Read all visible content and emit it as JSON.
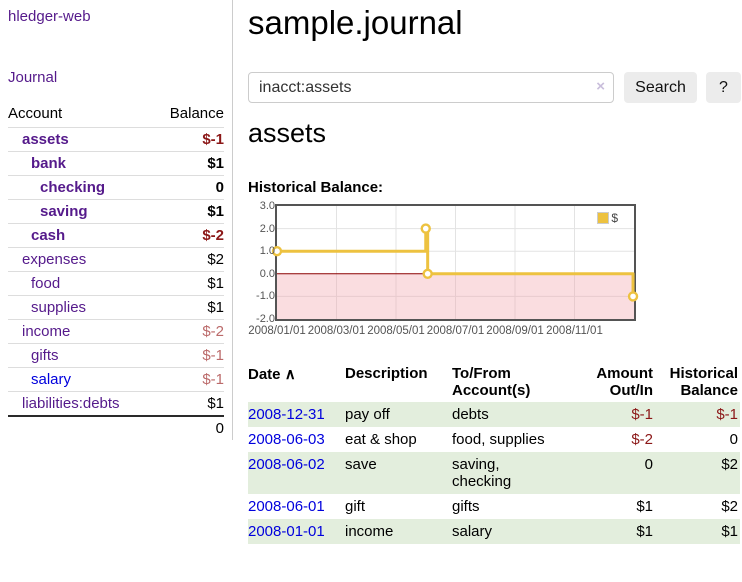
{
  "brand": "hledger-web",
  "nav": {
    "journal_label": "Journal"
  },
  "sidebar": {
    "header": {
      "account": "Account",
      "balance": "Balance"
    },
    "accounts": [
      {
        "name": "assets",
        "indent": 0,
        "bold": true,
        "balance": "$-1",
        "balance_style": "neg"
      },
      {
        "name": "bank",
        "indent": 1,
        "bold": true,
        "balance": "$1",
        "balance_style": "pos"
      },
      {
        "name": "checking",
        "indent": 2,
        "bold": true,
        "balance": "0",
        "balance_style": "pos"
      },
      {
        "name": "saving",
        "indent": 2,
        "bold": true,
        "balance": "$1",
        "balance_style": "pos"
      },
      {
        "name": "cash",
        "indent": 1,
        "bold": true,
        "balance": "$-2",
        "balance_style": "neg"
      },
      {
        "name": "expenses",
        "indent": 0,
        "bold": false,
        "balance": "$2",
        "balance_style": "pos"
      },
      {
        "name": "food",
        "indent": 1,
        "bold": false,
        "balance": "$1",
        "balance_style": "pos"
      },
      {
        "name": "supplies",
        "indent": 1,
        "bold": false,
        "balance": "$1",
        "balance_style": "pos"
      },
      {
        "name": "income",
        "indent": 0,
        "bold": false,
        "balance": "$-2",
        "balance_style": "neg-soft"
      },
      {
        "name": "gifts",
        "indent": 1,
        "bold": false,
        "balance": "$-1",
        "balance_style": "neg-soft"
      },
      {
        "name": "salary",
        "indent": 1,
        "bold": false,
        "balance": "$-1",
        "balance_style": "neg-soft",
        "link_color": "blue"
      },
      {
        "name": "liabilities:debts",
        "indent": 0,
        "bold": false,
        "balance": "$1",
        "balance_style": "pos"
      }
    ],
    "total": "0"
  },
  "header": {
    "title": "sample.journal"
  },
  "search": {
    "value": "inacct:assets",
    "clear_icon": "×",
    "button_label": "Search",
    "help_label": "?"
  },
  "account_page": {
    "title": "assets",
    "chart_label": "Historical Balance:"
  },
  "chart_data": {
    "type": "line",
    "title": "Historical Balance",
    "step": true,
    "series": [
      {
        "name": "$",
        "color": "#edc240",
        "points": [
          {
            "x": "2008-01-01",
            "y": 1
          },
          {
            "x": "2008-06-01",
            "y": 2
          },
          {
            "x": "2008-06-03",
            "y": 0
          },
          {
            "x": "2008-12-31",
            "y": -1
          }
        ]
      }
    ],
    "x_ticks": [
      {
        "label": "2008/01/01",
        "month": 0
      },
      {
        "label": "2008/03/01",
        "month": 2
      },
      {
        "label": "2008/05/01",
        "month": 4
      },
      {
        "label": "2008/07/01",
        "month": 6
      },
      {
        "label": "2008/09/01",
        "month": 8
      },
      {
        "label": "2008/11/01",
        "month": 10
      }
    ],
    "y_ticks": [
      3.0,
      2.0,
      1.0,
      0.0,
      -1.0,
      -2.0
    ],
    "ylim": [
      -2,
      3
    ],
    "xlim_months": [
      0,
      12
    ],
    "grid": true,
    "legend": {
      "label": "$",
      "position": "top-right"
    },
    "colors": {
      "grid": "#e3e3e3",
      "border": "#545454",
      "zero_line": "#8b0000",
      "negative_region": "rgba(240,157,166,0.35)"
    }
  },
  "register": {
    "headers": {
      "date": "Date",
      "sort_icon": "∧",
      "description": "Description",
      "accounts": "To/From Account(s)",
      "amount": "Amount Out/In",
      "balance": "Historical Balance"
    },
    "rows": [
      {
        "date": "2008-12-31",
        "description": "pay off",
        "accounts": "debts",
        "amount": "$-1",
        "amount_neg": true,
        "balance": "$-1",
        "balance_neg": true,
        "stripe": true
      },
      {
        "date": "2008-06-03",
        "description": "eat & shop",
        "accounts": "food, supplies",
        "amount": "$-2",
        "amount_neg": true,
        "balance": "0",
        "balance_neg": false,
        "stripe": false
      },
      {
        "date": "2008-06-02",
        "description": "save",
        "accounts": "saving,\nchecking",
        "amount": "0",
        "amount_neg": false,
        "balance": "$2",
        "balance_neg": false,
        "stripe": true
      },
      {
        "date": "2008-06-01",
        "description": "gift",
        "accounts": "gifts",
        "amount": "$1",
        "amount_neg": false,
        "balance": "$2",
        "balance_neg": false,
        "stripe": false
      },
      {
        "date": "2008-01-01",
        "description": "income",
        "accounts": "salary",
        "amount": "$1",
        "amount_neg": false,
        "balance": "$1",
        "balance_neg": false,
        "stripe": true
      }
    ]
  }
}
